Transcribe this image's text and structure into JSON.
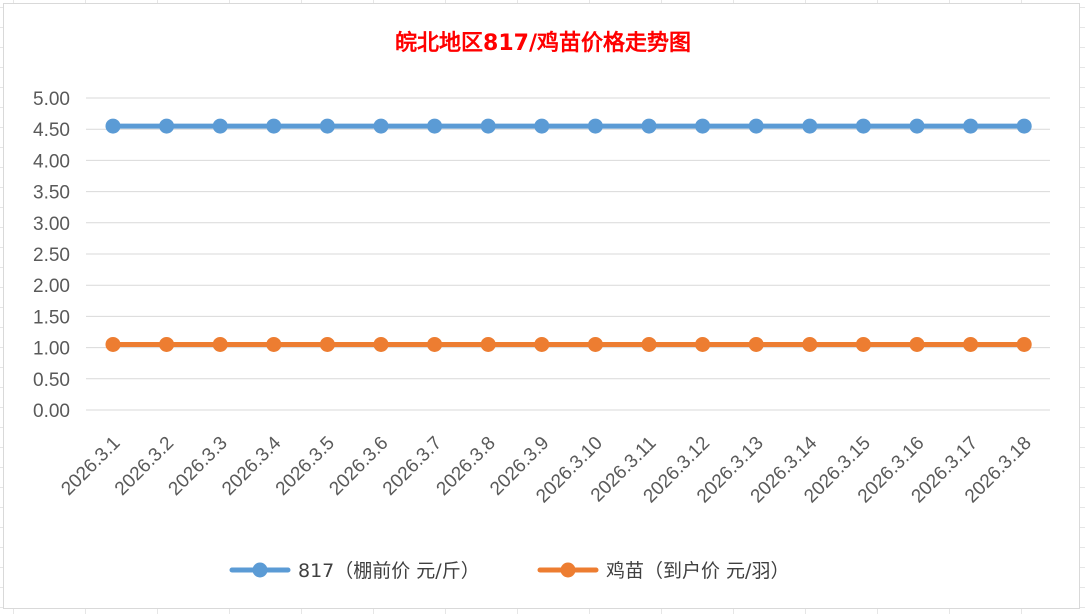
{
  "chart_data": {
    "type": "line",
    "title": "皖北地区817/鸡苗价格走势图",
    "categories": [
      "2026.3.1",
      "2026.3.2",
      "2026.3.3",
      "2026.3.4",
      "2026.3.5",
      "2026.3.6",
      "2026.3.7",
      "2026.3.8",
      "2026.3.9",
      "2026.3.10",
      "2026.3.11",
      "2026.3.12",
      "2026.3.13",
      "2026.3.14",
      "2026.3.15",
      "2026.3.16",
      "2026.3.17",
      "2026.3.18"
    ],
    "y_ticks": [
      "0.00",
      "0.50",
      "1.00",
      "1.50",
      "2.00",
      "2.50",
      "3.00",
      "3.50",
      "4.00",
      "4.50",
      "5.00"
    ],
    "ylim": [
      0,
      5
    ],
    "grid": true,
    "legend_position": "bottom",
    "series": [
      {
        "name": "817（棚前价 元/斤）",
        "color": "#5b9bd5",
        "values": [
          4.55,
          4.55,
          4.55,
          4.55,
          4.55,
          4.55,
          4.55,
          4.55,
          4.55,
          4.55,
          4.55,
          4.55,
          4.55,
          4.55,
          4.55,
          4.55,
          4.55,
          4.55
        ]
      },
      {
        "name": "鸡苗（到户价 元/羽）",
        "color": "#ed7d31",
        "values": [
          1.05,
          1.05,
          1.05,
          1.05,
          1.05,
          1.05,
          1.05,
          1.05,
          1.05,
          1.05,
          1.05,
          1.05,
          1.05,
          1.05,
          1.05,
          1.05,
          1.05,
          1.05
        ]
      }
    ]
  }
}
